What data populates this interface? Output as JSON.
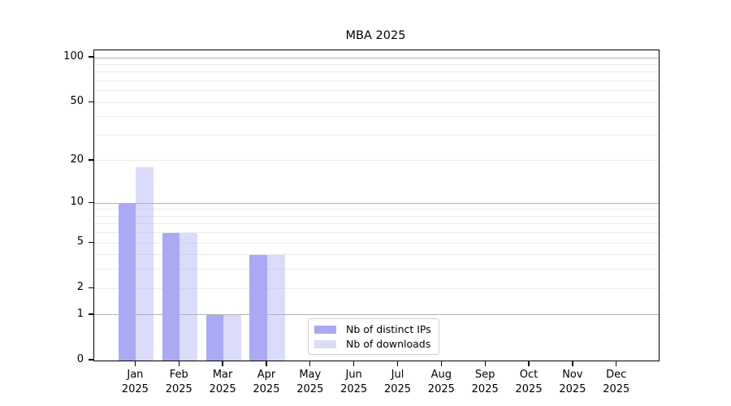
{
  "chart_data": {
    "type": "bar",
    "title": "MBA 2025",
    "categories": [
      "Jan 2025",
      "Feb 2025",
      "Mar 2025",
      "Apr 2025",
      "May 2025",
      "Jun 2025",
      "Jul 2025",
      "Aug 2025",
      "Sep 2025",
      "Oct 2025",
      "Nov 2025",
      "Dec 2025"
    ],
    "series": [
      {
        "name": "Nb of distinct IPs",
        "color": "#a9a9f4",
        "values": [
          10,
          6,
          1,
          4,
          0,
          0,
          0,
          0,
          0,
          0,
          0,
          0
        ]
      },
      {
        "name": "Nb of downloads",
        "color": "#dbdbf7",
        "values": [
          18,
          6,
          1,
          4,
          0,
          0,
          0,
          0,
          0,
          0,
          0,
          0
        ]
      }
    ],
    "xlabel": "",
    "ylabel": "",
    "yscale": "log1p",
    "ylim": [
      0,
      112
    ],
    "ytick_labels": [
      0,
      1,
      2,
      5,
      10,
      20,
      50,
      100
    ],
    "major_gridlines": [
      1,
      10,
      100
    ],
    "minor_gridlines": [
      2,
      3,
      4,
      5,
      6,
      7,
      8,
      9,
      20,
      30,
      40,
      50,
      60,
      70,
      80,
      90
    ],
    "grid": true,
    "legend_position": "lower center"
  },
  "colors": {
    "bar_distinct_ips": "#a9a9f4",
    "bar_downloads": "#dbdbf7",
    "grid_major": "#b0b0b0",
    "grid_minor": "#ebebeb",
    "spine": "#000000",
    "background": "#ffffff"
  }
}
